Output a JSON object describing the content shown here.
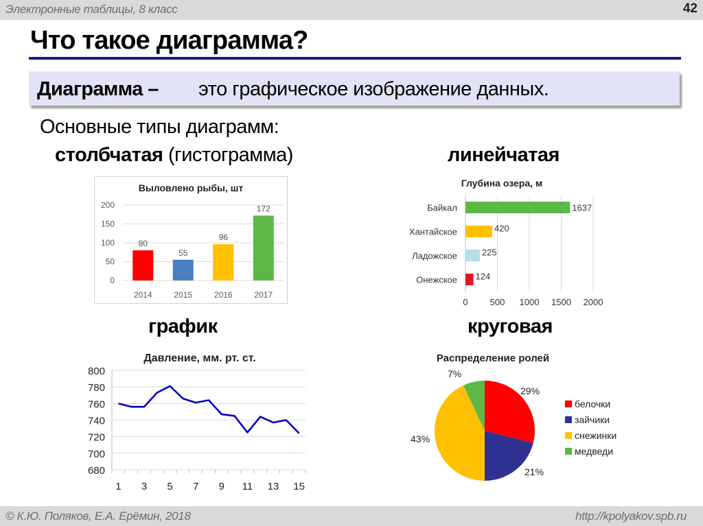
{
  "header": {
    "subject": "Электронные таблицы, 8 класс",
    "page_number": "42"
  },
  "slide": {
    "title": "Что такое диаграмма?",
    "definition": {
      "term": "Диаграмма –",
      "text": "это графическое изображение данных."
    },
    "intro": "Основные типы диаграмм:",
    "types": {
      "column": {
        "bold": "столбчатая",
        "normal": "(гистограмма)"
      },
      "bar": {
        "bold": "линейчатая"
      },
      "line": {
        "bold": "график"
      },
      "pie": {
        "bold": "круговая"
      }
    }
  },
  "footer": {
    "copyright": "© К.Ю. Поляков, Е.А. Ерёмин, 2018",
    "url": "http://kpolyakov.spb.ru"
  },
  "chart_data": [
    {
      "type": "bar",
      "orientation": "vertical",
      "title": "Выловлено рыбы, шт",
      "categories": [
        "2014",
        "2015",
        "2016",
        "2017"
      ],
      "values": [
        80,
        55,
        96,
        172
      ],
      "data_labels": [
        "80",
        "55",
        "96",
        "172"
      ],
      "colors": [
        "#ff0000",
        "#4a7fc1",
        "#ffc000",
        "#5cb946"
      ],
      "xlabel": "",
      "ylabel": "",
      "ylim": [
        0,
        200
      ],
      "yticks": [
        "0",
        "50",
        "100",
        "150",
        "200"
      ],
      "grid": true,
      "legend": null
    },
    {
      "type": "bar",
      "orientation": "horizontal",
      "title": "Глубина озера, м",
      "categories": [
        "Байкал",
        "Хантайское",
        "Ладожское",
        "Онежское"
      ],
      "values": [
        1637,
        420,
        225,
        124
      ],
      "data_labels": [
        "1637",
        "420",
        "225",
        "124"
      ],
      "colors": [
        "#5cb946",
        "#ffc000",
        "#b7dde8",
        "#e8141c"
      ],
      "xlim": [
        0,
        2000
      ],
      "xticks": [
        "0",
        "500",
        "1000",
        "1500",
        "2000"
      ],
      "grid": true,
      "legend": null
    },
    {
      "type": "line",
      "title": "Давление, мм. рт. ст.",
      "x": [
        1,
        2,
        3,
        4,
        5,
        6,
        7,
        8,
        9,
        10,
        11,
        12,
        13,
        14,
        15
      ],
      "series": [
        {
          "name": "Давление",
          "color": "#0000c0",
          "values": [
            760,
            756,
            756,
            773,
            781,
            766,
            761,
            764,
            747,
            745,
            725,
            744,
            737,
            740,
            724
          ]
        }
      ],
      "xticks": [
        "1",
        "3",
        "5",
        "7",
        "9",
        "11",
        "13",
        "15"
      ],
      "ylim": [
        680,
        800
      ],
      "yticks": [
        "680",
        "700",
        "720",
        "740",
        "760",
        "780",
        "800"
      ],
      "grid": true,
      "legend": null
    },
    {
      "type": "pie",
      "title": "Распределение ролей",
      "labels": [
        "белочки",
        "зайчики",
        "снежинки",
        "медведи"
      ],
      "values": [
        29,
        21,
        43,
        7
      ],
      "data_labels": [
        "29%",
        "21%",
        "43%",
        "7%"
      ],
      "colors": [
        "#ff0000",
        "#2e3192",
        "#ffc000",
        "#5cb946"
      ],
      "legend": {
        "position": "right",
        "entries": [
          "белочки",
          "зайчики",
          "снежинки",
          "медведи"
        ]
      }
    }
  ]
}
